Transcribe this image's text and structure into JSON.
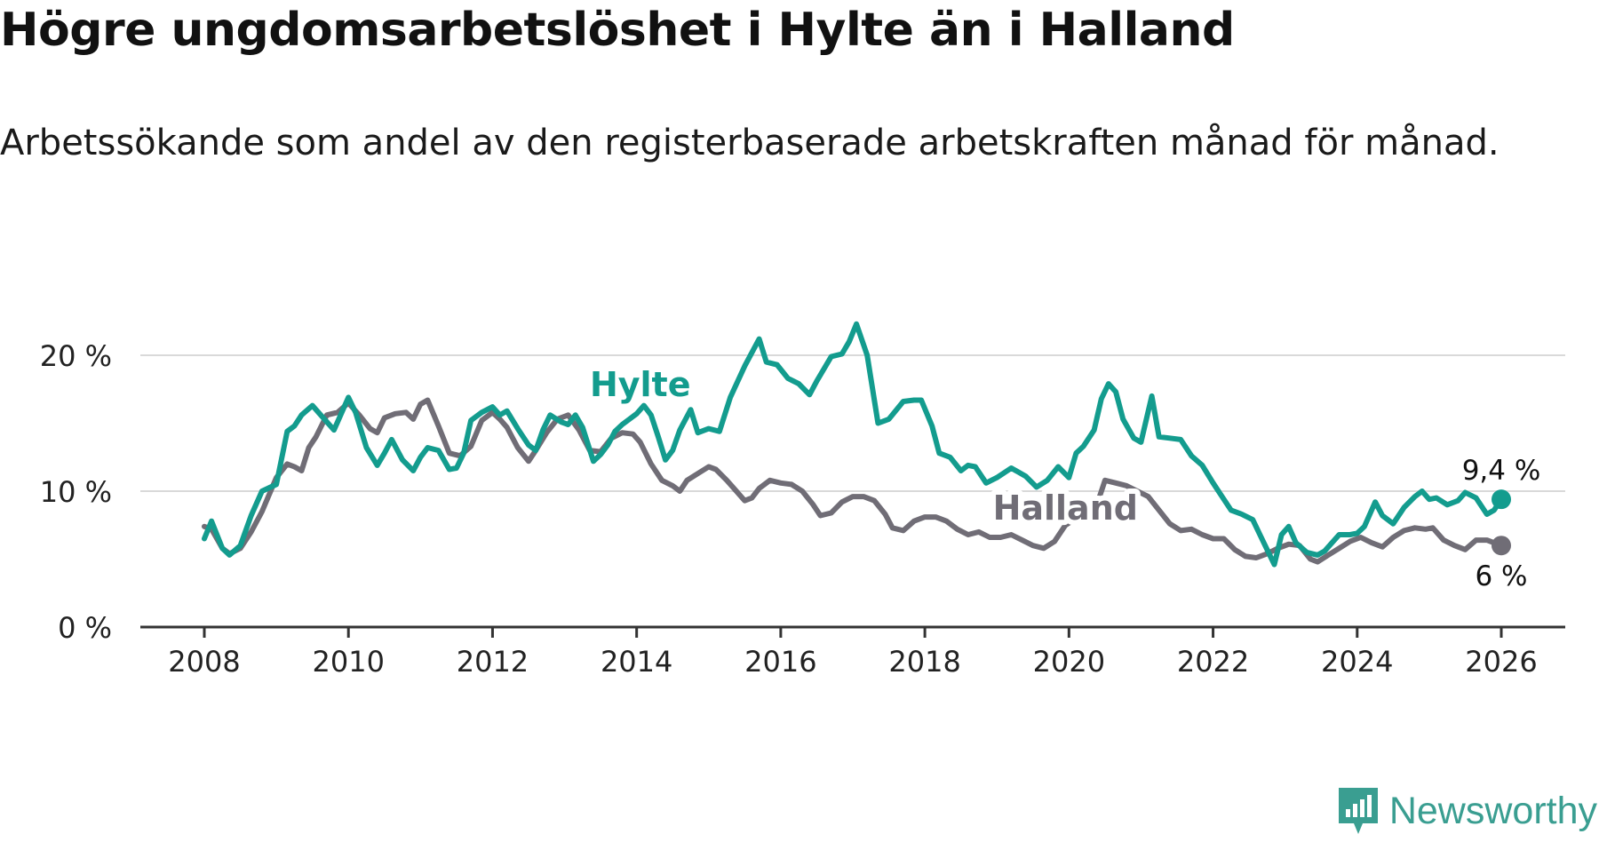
{
  "title": "Högre ungdomsarbetslöshet i Hylte än i Halland",
  "subtitle": "Arbetssökande som andel av den registerbaserade arbetskraften månad för månad.",
  "brand": "Newsworthy",
  "colors": {
    "hylte": "#139c8e",
    "halland": "#706d76",
    "grid": "#d9d9d9",
    "axis": "#333333",
    "brand": "#3a9e91"
  },
  "chart_data": {
    "type": "line",
    "title": "Högre ungdomsarbetslöshet i Hylte än i Halland",
    "subtitle": "Arbetssökande som andel av den registerbaserade arbetskraften månad för månad.",
    "xlabel": "",
    "ylabel": "",
    "xlim": [
      2008,
      2026.1
    ],
    "ylim": [
      0,
      22
    ],
    "x_ticks": [
      2008,
      2010,
      2012,
      2014,
      2016,
      2018,
      2020,
      2022,
      2024,
      2026
    ],
    "x_tick_labels": [
      "2008",
      "2010",
      "2012",
      "2014",
      "2016",
      "2018",
      "2020",
      "2022",
      "2024",
      "2026"
    ],
    "y_ticks": [
      0,
      10,
      20
    ],
    "y_tick_labels": [
      "0 %",
      "10 %",
      "20 %"
    ],
    "grid": true,
    "series": [
      {
        "name": "Hylte",
        "color": "#139c8e",
        "end_label": "9,4 %",
        "points": [
          [
            2008.0,
            6.5
          ],
          [
            2008.1,
            7.8
          ],
          [
            2008.25,
            5.8
          ],
          [
            2008.35,
            5.3
          ],
          [
            2008.5,
            6.0
          ],
          [
            2008.65,
            8.2
          ],
          [
            2008.8,
            10.0
          ],
          [
            2009.0,
            10.5
          ],
          [
            2009.15,
            14.4
          ],
          [
            2009.25,
            14.8
          ],
          [
            2009.35,
            15.6
          ],
          [
            2009.5,
            16.3
          ],
          [
            2009.65,
            15.4
          ],
          [
            2009.8,
            14.5
          ],
          [
            2010.0,
            16.9
          ],
          [
            2010.1,
            15.8
          ],
          [
            2010.25,
            13.2
          ],
          [
            2010.4,
            11.9
          ],
          [
            2010.5,
            12.8
          ],
          [
            2010.6,
            13.8
          ],
          [
            2010.75,
            12.3
          ],
          [
            2010.9,
            11.5
          ],
          [
            2011.0,
            12.5
          ],
          [
            2011.1,
            13.2
          ],
          [
            2011.25,
            13.0
          ],
          [
            2011.4,
            11.6
          ],
          [
            2011.5,
            11.7
          ],
          [
            2011.6,
            12.8
          ],
          [
            2011.7,
            15.2
          ],
          [
            2011.85,
            15.8
          ],
          [
            2012.0,
            16.2
          ],
          [
            2012.1,
            15.6
          ],
          [
            2012.2,
            15.9
          ],
          [
            2012.35,
            14.6
          ],
          [
            2012.5,
            13.4
          ],
          [
            2012.6,
            13.0
          ],
          [
            2012.7,
            14.5
          ],
          [
            2012.8,
            15.6
          ],
          [
            2012.95,
            15.1
          ],
          [
            2013.05,
            14.9
          ],
          [
            2013.15,
            15.6
          ],
          [
            2013.25,
            14.7
          ],
          [
            2013.4,
            12.2
          ],
          [
            2013.5,
            12.7
          ],
          [
            2013.6,
            13.4
          ],
          [
            2013.7,
            14.4
          ],
          [
            2013.8,
            14.9
          ],
          [
            2013.9,
            15.3
          ],
          [
            2014.0,
            15.7
          ],
          [
            2014.1,
            16.3
          ],
          [
            2014.2,
            15.6
          ],
          [
            2014.3,
            14.0
          ],
          [
            2014.4,
            12.3
          ],
          [
            2014.5,
            13.0
          ],
          [
            2014.6,
            14.5
          ],
          [
            2014.75,
            16.0
          ],
          [
            2014.85,
            14.3
          ],
          [
            2015.0,
            14.6
          ],
          [
            2015.15,
            14.4
          ],
          [
            2015.3,
            16.9
          ],
          [
            2015.5,
            19.2
          ],
          [
            2015.7,
            21.2
          ],
          [
            2015.8,
            19.5
          ],
          [
            2015.95,
            19.3
          ],
          [
            2016.1,
            18.3
          ],
          [
            2016.25,
            17.9
          ],
          [
            2016.4,
            17.1
          ],
          [
            2016.5,
            18.1
          ],
          [
            2016.7,
            19.9
          ],
          [
            2016.85,
            20.1
          ],
          [
            2016.95,
            21.0
          ],
          [
            2017.05,
            22.3
          ],
          [
            2017.2,
            20.0
          ],
          [
            2017.35,
            15.0
          ],
          [
            2017.5,
            15.3
          ],
          [
            2017.7,
            16.6
          ],
          [
            2017.85,
            16.7
          ],
          [
            2017.95,
            16.7
          ],
          [
            2018.1,
            14.8
          ],
          [
            2018.2,
            12.8
          ],
          [
            2018.35,
            12.5
          ],
          [
            2018.5,
            11.5
          ],
          [
            2018.6,
            11.9
          ],
          [
            2018.7,
            11.8
          ],
          [
            2018.85,
            10.6
          ],
          [
            2019.0,
            11.0
          ],
          [
            2019.2,
            11.7
          ],
          [
            2019.4,
            11.1
          ],
          [
            2019.55,
            10.3
          ],
          [
            2019.7,
            10.8
          ],
          [
            2019.85,
            11.8
          ],
          [
            2020.0,
            11.0
          ],
          [
            2020.1,
            12.8
          ],
          [
            2020.2,
            13.3
          ],
          [
            2020.35,
            14.5
          ],
          [
            2020.45,
            16.8
          ],
          [
            2020.55,
            17.9
          ],
          [
            2020.65,
            17.3
          ],
          [
            2020.75,
            15.3
          ],
          [
            2020.9,
            13.9
          ],
          [
            2021.0,
            13.6
          ],
          [
            2021.15,
            17.0
          ],
          [
            2021.25,
            14.0
          ],
          [
            2021.4,
            13.9
          ],
          [
            2021.55,
            13.8
          ],
          [
            2021.7,
            12.6
          ],
          [
            2021.85,
            11.9
          ],
          [
            2022.0,
            10.6
          ],
          [
            2022.1,
            9.8
          ],
          [
            2022.25,
            8.6
          ],
          [
            2022.4,
            8.3
          ],
          [
            2022.55,
            7.9
          ],
          [
            2022.65,
            6.8
          ],
          [
            2022.75,
            5.7
          ],
          [
            2022.85,
            4.6
          ],
          [
            2022.95,
            6.8
          ],
          [
            2023.05,
            7.4
          ],
          [
            2023.15,
            6.2
          ],
          [
            2023.3,
            5.5
          ],
          [
            2023.45,
            5.3
          ],
          [
            2023.55,
            5.6
          ],
          [
            2023.75,
            6.8
          ],
          [
            2023.9,
            6.8
          ],
          [
            2024.0,
            6.9
          ],
          [
            2024.1,
            7.4
          ],
          [
            2024.25,
            9.2
          ],
          [
            2024.35,
            8.2
          ],
          [
            2024.5,
            7.6
          ],
          [
            2024.65,
            8.8
          ],
          [
            2024.8,
            9.6
          ],
          [
            2024.9,
            10.0
          ],
          [
            2025.0,
            9.4
          ],
          [
            2025.1,
            9.5
          ],
          [
            2025.25,
            9.0
          ],
          [
            2025.4,
            9.3
          ],
          [
            2025.5,
            9.9
          ],
          [
            2025.65,
            9.5
          ],
          [
            2025.8,
            8.3
          ],
          [
            2025.9,
            8.6
          ],
          [
            2026.0,
            9.4
          ]
        ]
      },
      {
        "name": "Halland",
        "color": "#706d76",
        "end_label": "6 %",
        "points": [
          [
            2008.0,
            7.4
          ],
          [
            2008.1,
            7.2
          ],
          [
            2008.25,
            5.8
          ],
          [
            2008.35,
            5.4
          ],
          [
            2008.5,
            5.8
          ],
          [
            2008.65,
            7.0
          ],
          [
            2008.8,
            8.5
          ],
          [
            2009.0,
            11.0
          ],
          [
            2009.15,
            12.0
          ],
          [
            2009.25,
            11.8
          ],
          [
            2009.35,
            11.5
          ],
          [
            2009.45,
            13.2
          ],
          [
            2009.55,
            14.0
          ],
          [
            2009.7,
            15.6
          ],
          [
            2009.85,
            15.8
          ],
          [
            2010.0,
            16.5
          ],
          [
            2010.15,
            15.6
          ],
          [
            2010.3,
            14.6
          ],
          [
            2010.4,
            14.3
          ],
          [
            2010.5,
            15.4
          ],
          [
            2010.65,
            15.7
          ],
          [
            2010.8,
            15.8
          ],
          [
            2010.9,
            15.3
          ],
          [
            2011.0,
            16.4
          ],
          [
            2011.1,
            16.7
          ],
          [
            2011.25,
            14.8
          ],
          [
            2011.4,
            12.8
          ],
          [
            2011.55,
            12.6
          ],
          [
            2011.7,
            13.3
          ],
          [
            2011.85,
            15.2
          ],
          [
            2012.0,
            15.8
          ],
          [
            2012.1,
            15.3
          ],
          [
            2012.2,
            14.7
          ],
          [
            2012.35,
            13.2
          ],
          [
            2012.5,
            12.2
          ],
          [
            2012.6,
            13.0
          ],
          [
            2012.75,
            14.3
          ],
          [
            2012.9,
            15.3
          ],
          [
            2013.05,
            15.6
          ],
          [
            2013.2,
            14.5
          ],
          [
            2013.35,
            13.0
          ],
          [
            2013.5,
            12.9
          ],
          [
            2013.65,
            13.9
          ],
          [
            2013.8,
            14.3
          ],
          [
            2013.95,
            14.2
          ],
          [
            2014.05,
            13.6
          ],
          [
            2014.2,
            12.0
          ],
          [
            2014.35,
            10.8
          ],
          [
            2014.5,
            10.4
          ],
          [
            2014.6,
            10.0
          ],
          [
            2014.7,
            10.8
          ],
          [
            2014.85,
            11.3
          ],
          [
            2015.0,
            11.8
          ],
          [
            2015.1,
            11.6
          ],
          [
            2015.25,
            10.8
          ],
          [
            2015.35,
            10.2
          ],
          [
            2015.5,
            9.3
          ],
          [
            2015.6,
            9.5
          ],
          [
            2015.7,
            10.2
          ],
          [
            2015.85,
            10.8
          ],
          [
            2016.0,
            10.6
          ],
          [
            2016.15,
            10.5
          ],
          [
            2016.3,
            10.0
          ],
          [
            2016.45,
            9.0
          ],
          [
            2016.55,
            8.2
          ],
          [
            2016.7,
            8.4
          ],
          [
            2016.85,
            9.2
          ],
          [
            2017.0,
            9.6
          ],
          [
            2017.15,
            9.6
          ],
          [
            2017.3,
            9.3
          ],
          [
            2017.45,
            8.3
          ],
          [
            2017.55,
            7.3
          ],
          [
            2017.7,
            7.1
          ],
          [
            2017.85,
            7.8
          ],
          [
            2018.0,
            8.1
          ],
          [
            2018.15,
            8.1
          ],
          [
            2018.3,
            7.8
          ],
          [
            2018.45,
            7.2
          ],
          [
            2018.6,
            6.8
          ],
          [
            2018.75,
            7.0
          ],
          [
            2018.9,
            6.6
          ],
          [
            2019.05,
            6.6
          ],
          [
            2019.2,
            6.8
          ],
          [
            2019.35,
            6.4
          ],
          [
            2019.5,
            6.0
          ],
          [
            2019.65,
            5.8
          ],
          [
            2019.8,
            6.3
          ],
          [
            2019.95,
            7.5
          ],
          [
            2020.1,
            8.0
          ],
          [
            2020.25,
            8.3
          ],
          [
            2020.4,
            9.2
          ],
          [
            2020.5,
            10.8
          ],
          [
            2020.65,
            10.6
          ],
          [
            2020.8,
            10.4
          ],
          [
            2020.95,
            10.0
          ],
          [
            2021.1,
            9.6
          ],
          [
            2021.25,
            8.6
          ],
          [
            2021.4,
            7.6
          ],
          [
            2021.55,
            7.1
          ],
          [
            2021.7,
            7.2
          ],
          [
            2021.85,
            6.8
          ],
          [
            2022.0,
            6.5
          ],
          [
            2022.15,
            6.5
          ],
          [
            2022.3,
            5.7
          ],
          [
            2022.45,
            5.2
          ],
          [
            2022.6,
            5.1
          ],
          [
            2022.75,
            5.4
          ],
          [
            2022.9,
            5.8
          ],
          [
            2023.05,
            6.1
          ],
          [
            2023.2,
            6.0
          ],
          [
            2023.35,
            5.0
          ],
          [
            2023.45,
            4.8
          ],
          [
            2023.6,
            5.3
          ],
          [
            2023.75,
            5.8
          ],
          [
            2023.9,
            6.3
          ],
          [
            2024.05,
            6.6
          ],
          [
            2024.2,
            6.2
          ],
          [
            2024.35,
            5.9
          ],
          [
            2024.5,
            6.6
          ],
          [
            2024.65,
            7.1
          ],
          [
            2024.8,
            7.3
          ],
          [
            2024.95,
            7.2
          ],
          [
            2025.05,
            7.3
          ],
          [
            2025.2,
            6.4
          ],
          [
            2025.35,
            6.0
          ],
          [
            2025.5,
            5.7
          ],
          [
            2025.65,
            6.4
          ],
          [
            2025.8,
            6.4
          ],
          [
            2025.95,
            6.1
          ],
          [
            2026.0,
            6.0
          ]
        ]
      }
    ],
    "annotations": [
      {
        "text": "Hylte",
        "series": "Hylte",
        "x": 2014.05,
        "y": 17.0
      },
      {
        "text": "Halland",
        "series": "Halland",
        "x": 2019.95,
        "y": 7.9
      }
    ]
  }
}
